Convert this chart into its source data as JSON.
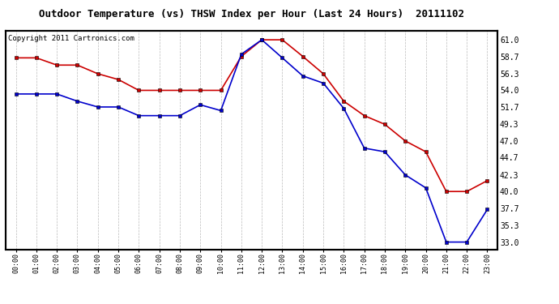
{
  "title": "Outdoor Temperature (vs) THSW Index per Hour (Last 24 Hours)  20111102",
  "copyright": "Copyright 2011 Cartronics.com",
  "hours": [
    "00:00",
    "01:00",
    "02:00",
    "03:00",
    "04:00",
    "05:00",
    "06:00",
    "07:00",
    "08:00",
    "09:00",
    "10:00",
    "11:00",
    "12:00",
    "13:00",
    "14:00",
    "15:00",
    "16:00",
    "17:00",
    "18:00",
    "19:00",
    "20:00",
    "21:00",
    "22:00",
    "23:00"
  ],
  "red_temp": [
    58.5,
    58.5,
    57.5,
    57.5,
    56.3,
    55.5,
    54.0,
    54.0,
    54.0,
    54.0,
    54.0,
    58.7,
    61.0,
    61.0,
    58.7,
    56.3,
    52.5,
    50.5,
    49.3,
    47.0,
    45.5,
    40.0,
    40.0,
    41.5
  ],
  "blue_thsw": [
    53.5,
    53.5,
    53.5,
    52.5,
    51.7,
    51.7,
    50.5,
    50.5,
    50.5,
    52.0,
    51.2,
    59.0,
    61.0,
    58.5,
    56.0,
    55.0,
    51.5,
    46.0,
    45.5,
    42.3,
    40.5,
    33.0,
    33.0,
    37.5
  ],
  "y_ticks": [
    33.0,
    35.3,
    37.7,
    40.0,
    42.3,
    44.7,
    47.0,
    49.3,
    51.7,
    54.0,
    56.3,
    58.7,
    61.0
  ],
  "y_min": 32.0,
  "y_max": 62.3,
  "red_color": "#cc0000",
  "blue_color": "#0000cc",
  "bg_color": "#ffffff",
  "plot_bg_color": "#ffffff",
  "grid_color": "#aaaaaa",
  "title_fontsize": 9,
  "copyright_fontsize": 6.5
}
